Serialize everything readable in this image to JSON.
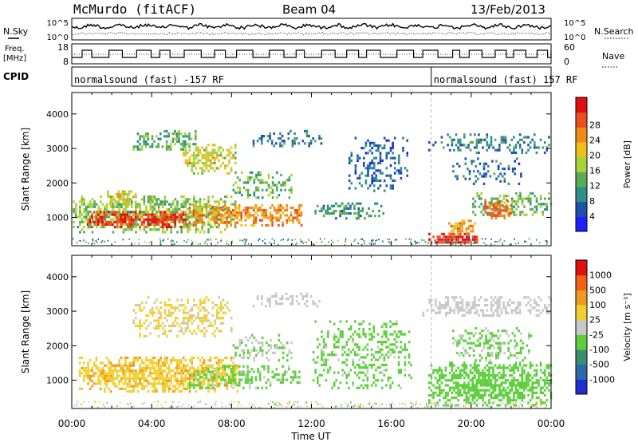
{
  "header": {
    "station": "McMurdo (fitACF)",
    "beam": "Beam 04",
    "date": "13/Feb/2013"
  },
  "top_panels": {
    "nsky_label": "N.Sky",
    "nsearch_label": "N.Search",
    "noise_ticks_left": [
      "10^5",
      "10^0"
    ],
    "noise_ticks_right": [
      "10^5",
      "10^0"
    ],
    "freq_label": [
      "Freq.",
      "[MHz]"
    ],
    "freq_ticks": [
      "18",
      "8"
    ],
    "nave_label": "Nave",
    "nave_ticks": [
      "60",
      "0"
    ],
    "cpid_label": "CPID",
    "cpid_segments": [
      {
        "text": "normalsound (fast) -157 RF",
        "start_hour": 0,
        "end_hour": 18
      },
      {
        "text": "normalsound (fast) 157 RF",
        "start_hour": 18,
        "end_hour": 24
      }
    ]
  },
  "x_axis": {
    "label": "Time UT",
    "ticks": [
      "00:00",
      "04:00",
      "08:00",
      "12:00",
      "16:00",
      "20:00",
      "00:00"
    ]
  },
  "chart_data": [
    {
      "type": "heatmap",
      "name": "power",
      "ylabel": "Slant Range [km]",
      "yticks": [
        1000,
        2000,
        3000,
        4000
      ],
      "ylim": [
        180,
        4620
      ],
      "xlim_hours": [
        0,
        24
      ],
      "colorbar_label": "Power [dB]",
      "colorbar_ticks": [
        "4",
        "8",
        "12",
        "16",
        "20",
        "24",
        "28"
      ],
      "colorbar_colors": [
        "#1f1fff",
        "#2050a8",
        "#2e8f86",
        "#5aab55",
        "#a6d23a",
        "#f0c01a",
        "#f08a1a",
        "#e85020",
        "#e01010"
      ],
      "colorbar_range": [
        0,
        31
      ],
      "blobs": [
        {
          "t0": 0.0,
          "t1": 8.3,
          "r0": 500,
          "r1": 1600,
          "v": 14,
          "d": 0.75
        },
        {
          "t0": 0.7,
          "t1": 5.8,
          "r0": 650,
          "r1": 1150,
          "v": 27,
          "d": 0.8
        },
        {
          "t0": 1.5,
          "t1": 3.2,
          "r0": 1300,
          "r1": 1750,
          "v": 18,
          "d": 0.6
        },
        {
          "t0": 5.8,
          "t1": 11.5,
          "r0": 700,
          "r1": 1350,
          "v": 22,
          "d": 0.65
        },
        {
          "t0": 3.0,
          "t1": 6.2,
          "r0": 2900,
          "r1": 3500,
          "v": 12,
          "d": 0.55
        },
        {
          "t0": 5.5,
          "t1": 8.2,
          "r0": 2200,
          "r1": 3100,
          "v": 17,
          "d": 0.6
        },
        {
          "t0": 8.0,
          "t1": 11.0,
          "r0": 1500,
          "r1": 2300,
          "v": 12,
          "d": 0.45
        },
        {
          "t0": 9.0,
          "t1": 12.5,
          "r0": 3000,
          "r1": 3500,
          "v": 8,
          "d": 0.35
        },
        {
          "t0": 12.0,
          "t1": 15.6,
          "r0": 900,
          "r1": 1400,
          "v": 10,
          "d": 0.45
        },
        {
          "t0": 13.8,
          "t1": 16.8,
          "r0": 1700,
          "r1": 3300,
          "v": 6,
          "d": 0.35
        },
        {
          "t0": 17.8,
          "t1": 20.3,
          "r0": 200,
          "r1": 520,
          "v": 29,
          "d": 0.95
        },
        {
          "t0": 18.8,
          "t1": 20.2,
          "r0": 450,
          "r1": 900,
          "v": 21,
          "d": 0.85
        },
        {
          "t0": 20.0,
          "t1": 24.0,
          "r0": 1000,
          "r1": 1700,
          "v": 13,
          "d": 0.5
        },
        {
          "t0": 20.6,
          "t1": 22.0,
          "r0": 900,
          "r1": 1500,
          "v": 24,
          "d": 0.75
        },
        {
          "t0": 17.8,
          "t1": 24.0,
          "r0": 2800,
          "r1": 3400,
          "v": 8,
          "d": 0.4
        },
        {
          "t0": 19.0,
          "t1": 22.5,
          "r0": 1900,
          "r1": 2700,
          "v": 7,
          "d": 0.3
        }
      ]
    },
    {
      "type": "heatmap",
      "name": "velocity",
      "ylabel": "Slant Range [km]",
      "yticks": [
        1000,
        2000,
        3000,
        4000
      ],
      "ylim": [
        180,
        4620
      ],
      "xlim_hours": [
        0,
        24
      ],
      "colorbar_label": "Velocity [m s⁻¹]",
      "colorbar_ticks": [
        "1000",
        "500",
        "100",
        "25",
        "-25",
        "-100",
        "-500",
        "-1000"
      ],
      "colorbar_colors": [
        "#1f2fcf",
        "#2e6aa8",
        "#3c8f6e",
        "#5ccf3a",
        "#c8c8c8",
        "#f0d030",
        "#f09a20",
        "#f06018",
        "#e01010"
      ],
      "colorbar_range": [
        -1100,
        1100
      ],
      "blobs": [
        {
          "t0": 0.3,
          "t1": 8.3,
          "r0": 600,
          "r1": 1650,
          "v": 300,
          "d": 0.8
        },
        {
          "t0": 3.0,
          "t1": 8.0,
          "r0": 2200,
          "r1": 3400,
          "v": 150,
          "d": 0.45
        },
        {
          "t0": 5.5,
          "t1": 11.5,
          "r0": 700,
          "r1": 1400,
          "v": -150,
          "d": 0.5
        },
        {
          "t0": 8.0,
          "t1": 11.0,
          "r0": 1500,
          "r1": 2300,
          "v": -120,
          "d": 0.4
        },
        {
          "t0": 12.0,
          "t1": 17.0,
          "r0": 700,
          "r1": 2700,
          "v": -180,
          "d": 0.35
        },
        {
          "t0": 17.8,
          "t1": 24.0,
          "r0": 200,
          "r1": 1500,
          "v": -220,
          "d": 0.7
        },
        {
          "t0": 19.0,
          "t1": 23.0,
          "r0": 1500,
          "r1": 2500,
          "v": -150,
          "d": 0.35
        },
        {
          "t0": 17.5,
          "t1": 24.0,
          "r0": 2800,
          "r1": 3400,
          "v": 10,
          "d": 0.5
        },
        {
          "t0": 9.0,
          "t1": 12.5,
          "r0": 3000,
          "r1": 3500,
          "v": 60,
          "d": 0.3
        }
      ]
    }
  ]
}
